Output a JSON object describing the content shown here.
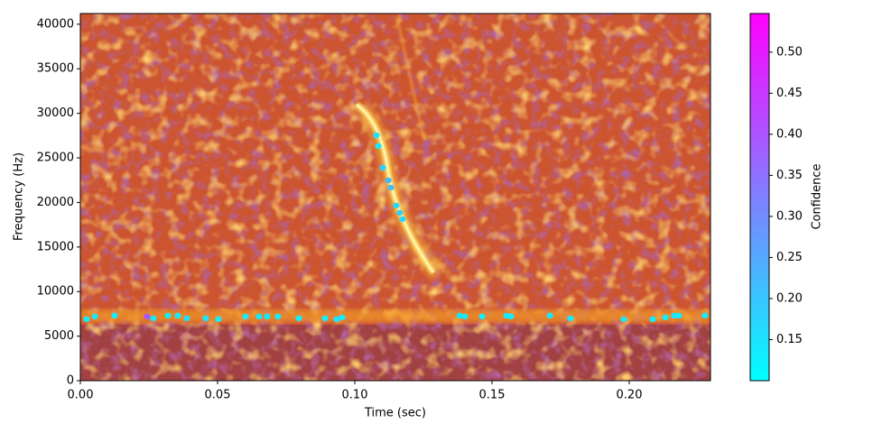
{
  "chart_data": {
    "type": "scatter",
    "x_label": "Time (sec)",
    "y_label": "Frequency (Hz)",
    "xlim": [
      0,
      0.2296
    ],
    "ylim": [
      0,
      41200
    ],
    "xticks": [
      {
        "value": 0,
        "label": "0.00"
      },
      0.05,
      {
        "value": 0.1,
        "label": "0.10"
      },
      0.15,
      {
        "value": 0.2,
        "label": "0.20"
      }
    ],
    "yticks": [
      0,
      5000,
      10000,
      15000,
      20000,
      25000,
      30000,
      35000,
      40000
    ],
    "x": [
      0.0023,
      0.0053,
      0.0125,
      0.0243,
      0.0266,
      0.0319,
      0.0355,
      0.0388,
      0.0457,
      0.0503,
      0.0602,
      0.0651,
      0.0681,
      0.072,
      0.0796,
      0.0891,
      0.0934,
      0.0954,
      0.1382,
      0.1401,
      0.1464,
      0.1553,
      0.1569,
      0.1711,
      0.1786,
      0.198,
      0.2086,
      0.2132,
      0.2164,
      0.2181,
      0.2276,
      0.1079,
      0.1086,
      0.1102,
      0.1122,
      0.1132,
      0.1151,
      0.1164,
      0.1174
    ],
    "y": [
      6900,
      7200,
      7300,
      7200,
      7000,
      7300,
      7300,
      7000,
      7000,
      6900,
      7200,
      7200,
      7200,
      7200,
      7000,
      7000,
      6900,
      7100,
      7300,
      7200,
      7200,
      7300,
      7200,
      7300,
      7000,
      6900,
      6900,
      7100,
      7300,
      7300,
      7300,
      27540,
      26330,
      23900,
      22480,
      21670,
      19650,
      18840,
      18130
    ],
    "confidence": [
      0.13,
      0.14,
      0.13,
      0.4,
      0.14,
      0.13,
      0.14,
      0.15,
      0.14,
      0.13,
      0.13,
      0.14,
      0.14,
      0.13,
      0.13,
      0.13,
      0.14,
      0.13,
      0.14,
      0.14,
      0.13,
      0.14,
      0.13,
      0.14,
      0.13,
      0.14,
      0.13,
      0.13,
      0.14,
      0.13,
      0.13,
      0.15,
      0.14,
      0.18,
      0.22,
      0.22,
      0.17,
      0.18,
      0.17
    ],
    "colorbar": {
      "label": "Confidence",
      "lim": [
        0.1,
        0.547
      ],
      "colors": [
        "#00ffff",
        "#ff00ff"
      ],
      "ticks": [
        0.15,
        {
          "value": 0.2,
          "label": "0.20"
        },
        0.25,
        {
          "value": 0.3,
          "label": "0.30"
        },
        0.35,
        {
          "value": 0.4,
          "label": "0.40"
        },
        0.45,
        {
          "value": 0.5,
          "label": "0.50"
        }
      ]
    }
  }
}
